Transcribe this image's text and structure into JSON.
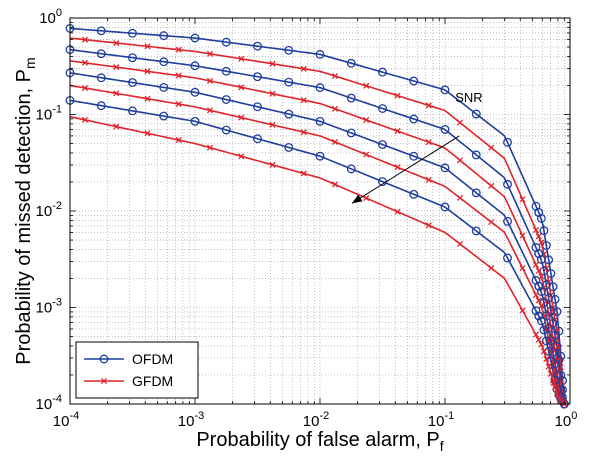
{
  "chart_data": {
    "type": "line",
    "xlabel": "Probability of false alarm, P",
    "xlabel_sub": "f",
    "ylabel": "Probability of missed detection, P",
    "ylabel_sub": "m",
    "xscale": "log",
    "yscale": "log",
    "xlim": [
      0.0001,
      1
    ],
    "ylim": [
      0.0001,
      1
    ],
    "xticks": [
      {
        "value": 0.0001,
        "base": "10",
        "exp": "-4"
      },
      {
        "value": 0.001,
        "base": "10",
        "exp": "-3"
      },
      {
        "value": 0.01,
        "base": "10",
        "exp": "-2"
      },
      {
        "value": 0.1,
        "base": "10",
        "exp": "-1"
      },
      {
        "value": 1,
        "base": "10",
        "exp": "0"
      }
    ],
    "yticks": [
      {
        "value": 0.0001,
        "base": "10",
        "exp": "-4"
      },
      {
        "value": 0.001,
        "base": "10",
        "exp": "-3"
      },
      {
        "value": 0.01,
        "base": "10",
        "exp": "-2"
      },
      {
        "value": 0.1,
        "base": "10",
        "exp": "-1"
      },
      {
        "value": 1,
        "base": "10",
        "exp": "0"
      }
    ],
    "grid": "dotted, major and minor",
    "legend": {
      "placement": "bottom-left",
      "entries": [
        {
          "label": "OFDM",
          "color": "#1f3e9e",
          "marker": "circle"
        },
        {
          "label": "GFDM",
          "color": "#e0242a",
          "marker": "x"
        }
      ]
    },
    "annotation": {
      "text": "SNR",
      "arrow": "points toward lower curves (increasing SNR)",
      "arrow_start": [
        0.13,
        0.06
      ],
      "arrow_end": [
        0.018,
        0.012
      ]
    },
    "series": [
      {
        "label": "OFDM",
        "color": "#1f3e9e",
        "marker": "circle",
        "x": [
          0.0001,
          0.001,
          0.01,
          0.1,
          0.3,
          0.6,
          0.8,
          0.9
        ],
        "y": [
          0.78,
          0.62,
          0.42,
          0.18,
          0.06,
          0.008,
          0.0008,
          0.0001
        ]
      },
      {
        "label": "GFDM",
        "color": "#e0242a",
        "marker": "x",
        "x": [
          0.0001,
          0.001,
          0.01,
          0.1,
          0.3,
          0.6,
          0.8,
          0.9
        ],
        "y": [
          0.62,
          0.45,
          0.28,
          0.11,
          0.035,
          0.0045,
          0.0005,
          0.0001
        ]
      },
      {
        "label": "OFDM",
        "color": "#1f3e9e",
        "marker": "circle",
        "x": [
          0.0001,
          0.001,
          0.01,
          0.1,
          0.3,
          0.6,
          0.8,
          0.9
        ],
        "y": [
          0.47,
          0.32,
          0.19,
          0.07,
          0.022,
          0.003,
          0.00035,
          0.0001
        ]
      },
      {
        "label": "GFDM",
        "color": "#e0242a",
        "marker": "x",
        "x": [
          0.0001,
          0.001,
          0.01,
          0.1,
          0.3,
          0.6,
          0.8,
          0.9
        ],
        "y": [
          0.36,
          0.24,
          0.13,
          0.045,
          0.014,
          0.002,
          0.00025,
          0.0001
        ]
      },
      {
        "label": "OFDM",
        "color": "#1f3e9e",
        "marker": "circle",
        "x": [
          0.0001,
          0.001,
          0.01,
          0.1,
          0.3,
          0.6,
          0.8,
          0.9
        ],
        "y": [
          0.27,
          0.17,
          0.085,
          0.028,
          0.009,
          0.0014,
          0.00018,
          0.0001
        ]
      },
      {
        "label": "GFDM",
        "color": "#e0242a",
        "marker": "x",
        "x": [
          0.0001,
          0.001,
          0.01,
          0.1,
          0.3,
          0.6,
          0.8,
          0.9
        ],
        "y": [
          0.2,
          0.12,
          0.06,
          0.018,
          0.006,
          0.001,
          0.00015,
          0.0001
        ]
      },
      {
        "label": "OFDM",
        "color": "#1f3e9e",
        "marker": "circle",
        "x": [
          0.0001,
          0.001,
          0.01,
          0.1,
          0.3,
          0.6,
          0.8,
          0.9
        ],
        "y": [
          0.14,
          0.085,
          0.037,
          0.011,
          0.0037,
          0.0007,
          0.00013,
          0.0001
        ]
      },
      {
        "label": "GFDM",
        "color": "#e0242a",
        "marker": "x",
        "x": [
          0.0001,
          0.001,
          0.01,
          0.1,
          0.3,
          0.6,
          0.8,
          0.9
        ],
        "y": [
          0.095,
          0.05,
          0.022,
          0.006,
          0.002,
          0.0004,
          0.00012,
          0.0001
        ]
      }
    ]
  }
}
